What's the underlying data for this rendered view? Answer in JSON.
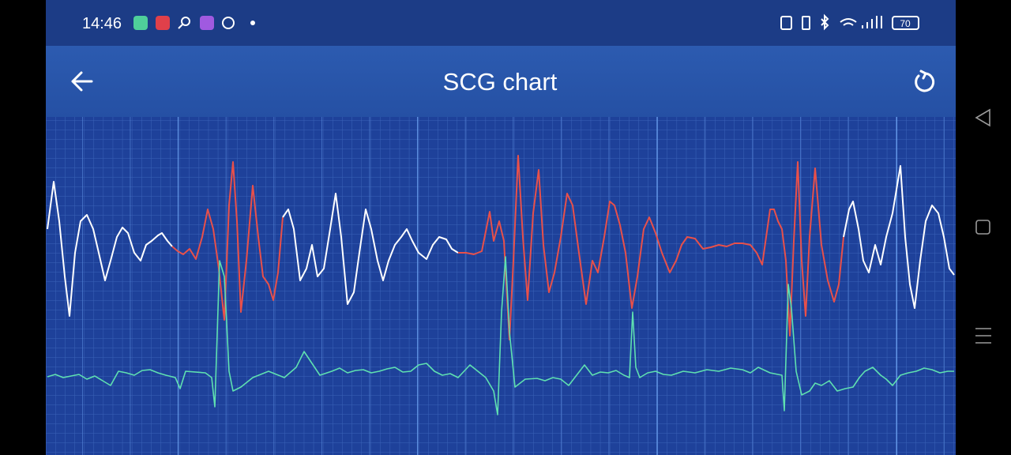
{
  "status_bar": {
    "time": "14:46",
    "battery": "70"
  },
  "header": {
    "title": "SCG chart"
  }
}
